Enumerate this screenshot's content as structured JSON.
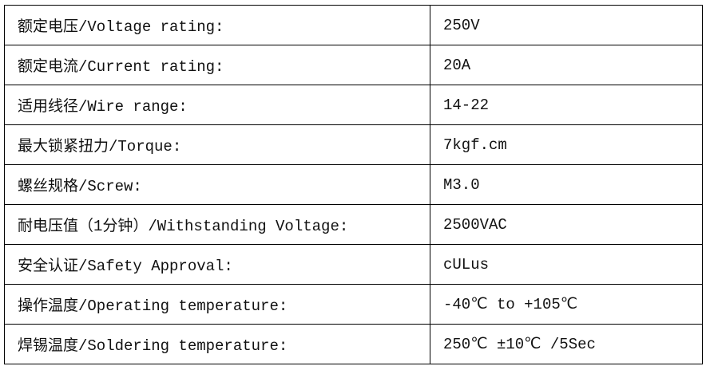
{
  "specs": [
    {
      "label": "额定电压/Voltage rating:",
      "value": "250V"
    },
    {
      "label": "额定电流/Current rating:",
      "value": "20A"
    },
    {
      "label": "适用线径/Wire range:",
      "value": "14-22"
    },
    {
      "label": "最大锁紧扭力/Torque:",
      "value": "7kgf.cm"
    },
    {
      "label": "螺丝规格/Screw:",
      "value": "M3.0"
    },
    {
      "label": "耐电压值（1分钟）/Withstanding Voltage:",
      "value": "2500VAC"
    },
    {
      "label": "安全认证/Safety Approval:",
      "value": "cULus"
    },
    {
      "label": "操作温度/Operating temperature:",
      "value": "-40℃ to +105℃"
    },
    {
      "label": "焊锡温度/Soldering temperature:",
      "value": "250℃ ±10℃ /5Sec"
    }
  ]
}
